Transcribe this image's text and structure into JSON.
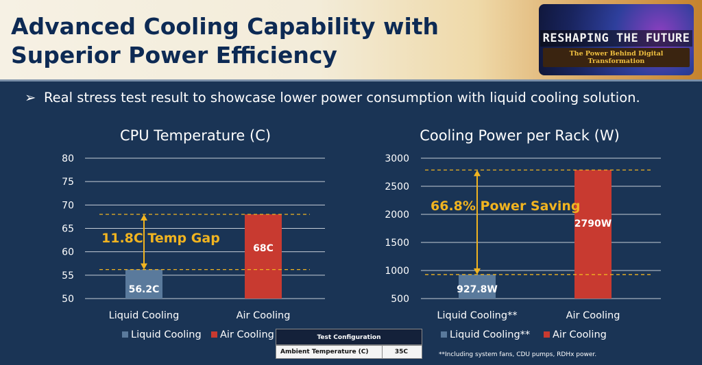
{
  "header": {
    "title_line1": "Advanced Cooling Capability with",
    "title_line2": "Superior Power Efficiency",
    "logo_main": "RESHAPING THE FUTURE",
    "logo_sub": "The Power Behind Digital Transformation"
  },
  "bullet": {
    "arrow": "➢",
    "text": "Real stress test result to showcase lower power consumption with liquid cooling solution."
  },
  "colors": {
    "background": "#1a3455",
    "liquid": "#5a7a9c",
    "air": "#c83a30",
    "annotation": "#f1b420",
    "title_text": "#0d2a54"
  },
  "chart_data": [
    {
      "type": "bar",
      "title": "CPU Temperature (C)",
      "categories": [
        "Liquid Cooling",
        "Air Cooling"
      ],
      "values": [
        56.2,
        68
      ],
      "value_labels": [
        "56.2C",
        "68C"
      ],
      "ylim": [
        50,
        80
      ],
      "yticks": [
        50,
        55,
        60,
        65,
        70,
        75,
        80
      ],
      "grid": true,
      "legend": [
        "Liquid Cooling",
        "Air Cooling"
      ],
      "legend_position": "bottom",
      "annotation": "11.8C Temp Gap"
    },
    {
      "type": "bar",
      "title": "Cooling Power per Rack (W)",
      "categories": [
        "Liquid Cooling**",
        "Air Cooling"
      ],
      "values": [
        927.8,
        2790
      ],
      "value_labels": [
        "927.8W",
        "2790W"
      ],
      "ylim": [
        500,
        3000
      ],
      "yticks": [
        500,
        1000,
        1500,
        2000,
        2500,
        3000
      ],
      "grid": true,
      "legend": [
        "Liquid Cooling**",
        "Air Cooling"
      ],
      "legend_position": "bottom",
      "annotation": "66.8% Power Saving"
    }
  ],
  "config_table": {
    "header": "Test Configuration",
    "key": "Ambient Temperature (C)",
    "value": "35C"
  },
  "footnote": "**Including system fans, CDU pumps, RDHx power."
}
